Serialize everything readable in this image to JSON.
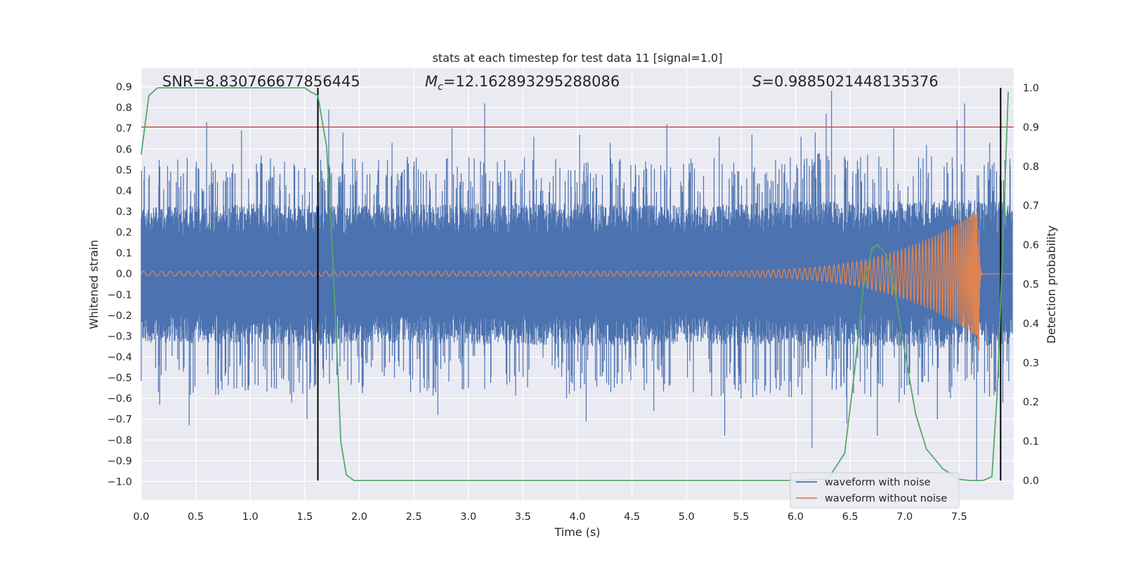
{
  "chart_data": {
    "type": "line",
    "title": "stats at each timestep for test data 11 [signal=1.0]",
    "xlabel": "Time (s)",
    "ylabel_left": "Whitened strain",
    "ylabel_right": "Detection probability",
    "xlim": [
      0.0,
      8.0
    ],
    "ylim_left": [
      -1.09,
      0.99
    ],
    "ylim_right": [
      -0.05,
      1.05
    ],
    "xticks": [
      "0.0",
      "0.5",
      "1.0",
      "1.5",
      "2.0",
      "2.5",
      "3.0",
      "3.5",
      "4.0",
      "4.5",
      "5.0",
      "5.5",
      "6.0",
      "6.5",
      "7.0",
      "7.5"
    ],
    "yticks_left": [
      "0.9",
      "0.8",
      "0.7",
      "0.6",
      "0.5",
      "0.4",
      "0.3",
      "0.2",
      "0.1",
      "0.0",
      "−0.1",
      "−0.2",
      "−0.3",
      "−0.4",
      "−0.5",
      "−0.6",
      "−0.7",
      "−0.8",
      "−0.9",
      "−1.0"
    ],
    "yticks_right": [
      "1.0",
      "0.9",
      "0.8",
      "0.7",
      "0.6",
      "0.5",
      "0.4",
      "0.3",
      "0.2",
      "0.1",
      "0.0"
    ],
    "annotations": {
      "snr": "SNR=8.830766677856445",
      "mc_symbol": "M",
      "mc_subscript": "c",
      "mc_value": "=12.162893295288086",
      "s_symbol": "S",
      "s_value": "=0.9885021448135376"
    },
    "threshold": {
      "value": 0.9,
      "axis": "right",
      "color": "#c44e52"
    },
    "markers": {
      "vertical_lines_x": [
        1.62,
        7.88
      ],
      "color": "#000000"
    },
    "series": [
      {
        "name": "waveform with noise",
        "axis": "left",
        "color": "#4c72b0",
        "envelope_upper": [
          [
            0.0,
            0.32
          ],
          [
            0.5,
            0.33
          ],
          [
            1.0,
            0.34
          ],
          [
            1.5,
            0.33
          ],
          [
            2.0,
            0.33
          ],
          [
            3.0,
            0.34
          ],
          [
            4.0,
            0.34
          ],
          [
            5.0,
            0.33
          ],
          [
            6.0,
            0.35
          ],
          [
            7.0,
            0.35
          ],
          [
            7.5,
            0.36
          ],
          [
            8.0,
            0.34
          ]
        ],
        "envelope_lower": [
          [
            0.0,
            -0.33
          ],
          [
            0.5,
            -0.34
          ],
          [
            1.0,
            -0.34
          ],
          [
            1.5,
            -0.35
          ],
          [
            2.0,
            -0.33
          ],
          [
            3.0,
            -0.34
          ],
          [
            4.0,
            -0.35
          ],
          [
            5.0,
            -0.34
          ],
          [
            6.0,
            -0.35
          ],
          [
            7.0,
            -0.35
          ],
          [
            7.5,
            -0.36
          ],
          [
            8.0,
            -0.34
          ]
        ],
        "peaks_upper": [
          [
            0.42,
            0.48
          ],
          [
            0.6,
            0.73
          ],
          [
            0.92,
            0.69
          ],
          [
            1.1,
            0.57
          ],
          [
            1.5,
            0.51
          ],
          [
            1.72,
            0.79
          ],
          [
            1.85,
            0.68
          ],
          [
            2.3,
            0.63
          ],
          [
            2.85,
            0.7
          ],
          [
            3.15,
            0.82
          ],
          [
            3.6,
            0.66
          ],
          [
            4.02,
            0.67
          ],
          [
            4.3,
            0.63
          ],
          [
            4.82,
            0.72
          ],
          [
            5.3,
            0.66
          ],
          [
            5.6,
            0.67
          ],
          [
            6.05,
            0.66
          ],
          [
            6.18,
            0.68
          ],
          [
            6.33,
            0.88
          ],
          [
            6.28,
            0.77
          ],
          [
            6.9,
            0.7
          ],
          [
            7.2,
            0.62
          ],
          [
            7.48,
            0.74
          ],
          [
            7.55,
            0.82
          ],
          [
            7.78,
            0.63
          ]
        ],
        "peaks_lower": [
          [
            0.17,
            -0.63
          ],
          [
            0.44,
            -0.73
          ],
          [
            1.38,
            -0.62
          ],
          [
            1.52,
            -0.7
          ],
          [
            1.6,
            -0.53
          ],
          [
            2.7,
            -0.57
          ],
          [
            2.72,
            -0.68
          ],
          [
            3.0,
            -0.55
          ],
          [
            3.9,
            -0.6
          ],
          [
            4.08,
            -0.71
          ],
          [
            4.7,
            -0.66
          ],
          [
            5.35,
            -0.78
          ],
          [
            5.5,
            -0.6
          ],
          [
            6.15,
            -0.84
          ],
          [
            6.47,
            -0.72
          ],
          [
            6.75,
            -0.78
          ],
          [
            6.95,
            -0.62
          ],
          [
            7.3,
            -0.7
          ],
          [
            7.42,
            -0.6
          ],
          [
            7.66,
            -1.0
          ],
          [
            7.9,
            -0.62
          ]
        ]
      },
      {
        "name": "waveform without noise",
        "axis": "left",
        "color": "#dd8452",
        "chirp": {
          "t_start": 0.0,
          "t_merger": 7.68,
          "amp_start": 0.012,
          "amp_peak": 0.31,
          "amp_trough": -0.37,
          "freq_start": 12.0,
          "freq_end": 120.0
        }
      },
      {
        "name": "detection probability",
        "axis": "right",
        "color": "#55a868",
        "points": [
          [
            0.0,
            0.83
          ],
          [
            0.07,
            0.98
          ],
          [
            0.15,
            1.0
          ],
          [
            0.5,
            1.0
          ],
          [
            1.0,
            1.0
          ],
          [
            1.5,
            1.0
          ],
          [
            1.55,
            0.99
          ],
          [
            1.62,
            0.98
          ],
          [
            1.7,
            0.85
          ],
          [
            1.75,
            0.6
          ],
          [
            1.8,
            0.3
          ],
          [
            1.83,
            0.1
          ],
          [
            1.88,
            0.015
          ],
          [
            1.95,
            0.0
          ],
          [
            3.0,
            0.0
          ],
          [
            4.0,
            0.0
          ],
          [
            5.0,
            0.0
          ],
          [
            6.0,
            0.0
          ],
          [
            6.3,
            0.005
          ],
          [
            6.45,
            0.07
          ],
          [
            6.55,
            0.3
          ],
          [
            6.62,
            0.49
          ],
          [
            6.7,
            0.59
          ],
          [
            6.75,
            0.6
          ],
          [
            6.82,
            0.58
          ],
          [
            6.9,
            0.5
          ],
          [
            7.0,
            0.33
          ],
          [
            7.1,
            0.17
          ],
          [
            7.2,
            0.08
          ],
          [
            7.35,
            0.03
          ],
          [
            7.5,
            0.003
          ],
          [
            7.6,
            0.0
          ],
          [
            7.72,
            0.0
          ],
          [
            7.8,
            0.01
          ],
          [
            7.85,
            0.23
          ],
          [
            7.9,
            0.6
          ],
          [
            7.95,
            0.99
          ]
        ]
      }
    ],
    "legend": {
      "location": "lower-right",
      "entries": [
        "waveform with noise",
        "waveform without noise"
      ]
    }
  }
}
